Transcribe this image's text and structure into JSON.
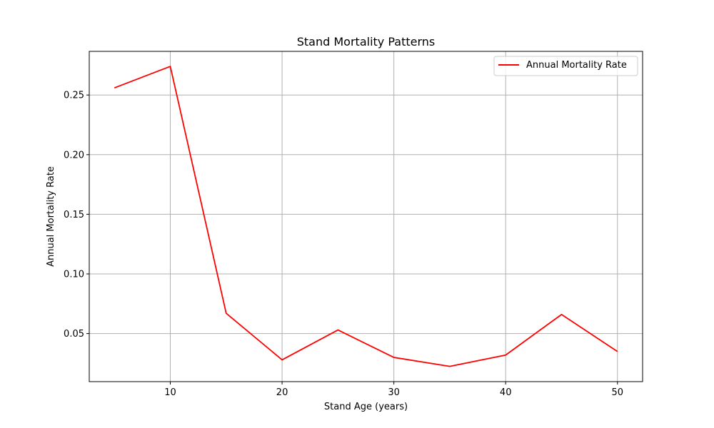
{
  "chart_data": {
    "type": "line",
    "title": "Stand Mortality Patterns",
    "xlabel": "Stand Age (years)",
    "ylabel": "Annual Mortality Rate",
    "xlim": [
      2.75,
      52.25
    ],
    "ylim": [
      0.0097,
      0.2866
    ],
    "xticks": [
      10,
      20,
      30,
      40,
      50
    ],
    "yticks": [
      0.05,
      0.1,
      0.15,
      0.2,
      0.25
    ],
    "ytick_labels": [
      "0.05",
      "0.10",
      "0.15",
      "0.20",
      "0.25"
    ],
    "grid": true,
    "legend_position": "top-right",
    "series": [
      {
        "name": "Annual Mortality Rate",
        "color": "#ff0000",
        "x": [
          5,
          10,
          15,
          20,
          25,
          30,
          35,
          40,
          45,
          50
        ],
        "y": [
          0.256,
          0.274,
          0.067,
          0.028,
          0.053,
          0.03,
          0.0225,
          0.032,
          0.066,
          0.035
        ]
      }
    ]
  }
}
